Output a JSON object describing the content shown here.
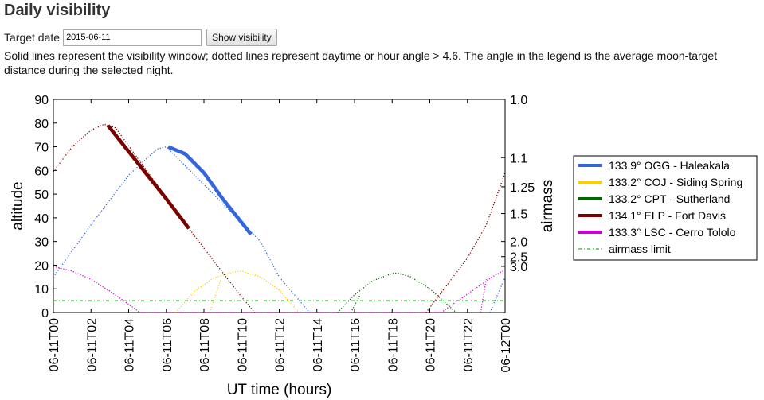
{
  "page": {
    "title": "Daily visibility",
    "date_label": "Target date",
    "date_value": "2015-06-11",
    "button_label": "Show visibility",
    "description": "Solid lines represent the visibility window; dotted lines represent daytime or hour angle > 4.6. The angle in the legend is the average moon-target distance during the selected night."
  },
  "chart_data": {
    "type": "line",
    "xlabel": "UT time (hours)",
    "ylabel": "altitude",
    "y2label": "airmass",
    "xlim": [
      0,
      24
    ],
    "ylim": [
      0,
      90
    ],
    "x_ticks": [
      0,
      2,
      4,
      6,
      8,
      10,
      12,
      14,
      16,
      18,
      20,
      22,
      24
    ],
    "x_tick_labels": [
      "06-11T00",
      "06-11T02",
      "06-11T04",
      "06-11T06",
      "06-11T08",
      "06-11T10",
      "06-11T12",
      "06-11T14",
      "06-11T16",
      "06-11T18",
      "06-11T20",
      "06-11T22",
      "06-12T00"
    ],
    "y_ticks": [
      0,
      10,
      20,
      30,
      40,
      50,
      60,
      70,
      80,
      90
    ],
    "airmass_ticks": [
      {
        "label": "1.0",
        "altitude": 90
      },
      {
        "label": "1.1",
        "altitude": 65.4
      },
      {
        "label": "1.25",
        "altitude": 53.1
      },
      {
        "label": "1.5",
        "altitude": 41.8
      },
      {
        "label": "2.0",
        "altitude": 30
      },
      {
        "label": "2.5",
        "altitude": 23.6
      },
      {
        "label": "3.0",
        "altitude": 19.5
      }
    ],
    "airmass_limit": {
      "label": "airmass limit",
      "altitude": 5,
      "color": "#009900"
    },
    "legend_position": "outside-right",
    "series": [
      {
        "name": "133.9° OGG - Haleakala",
        "color": "#3366dd",
        "dotted": [
          [
            0,
            15
          ],
          [
            2,
            37
          ],
          [
            4,
            58
          ],
          [
            5.5,
            69
          ],
          [
            6,
            70
          ],
          [
            11,
            30
          ],
          [
            12,
            15
          ],
          [
            13.5,
            1
          ],
          [
            13.65,
            0
          ]
        ],
        "solid": [
          [
            6.1,
            70
          ],
          [
            7.0,
            67
          ],
          [
            8.0,
            59
          ],
          [
            9.0,
            48
          ],
          [
            10.0,
            38
          ],
          [
            10.5,
            33
          ]
        ]
      },
      {
        "name": "133.2° COJ - Siding Spring",
        "color": "#ffcc00",
        "dotted": [
          [
            6.5,
            0
          ],
          [
            7.5,
            9
          ],
          [
            8.5,
            14.5
          ],
          [
            9.5,
            17
          ],
          [
            10.0,
            17.5
          ],
          [
            11,
            15
          ],
          [
            12,
            9.5
          ],
          [
            13.05,
            0
          ]
        ],
        "solid": []
      },
      {
        "name": "133.2° CPT - Sutherland",
        "color": "#006600",
        "dotted": [
          [
            15.1,
            0
          ],
          [
            16,
            7.5
          ],
          [
            17,
            13.5
          ],
          [
            18,
            16.5
          ],
          [
            18.3,
            16.7
          ],
          [
            19,
            15
          ],
          [
            20,
            10
          ],
          [
            21.4,
            0
          ]
        ],
        "solid": []
      },
      {
        "name": "134.1° ELP - Fort Davis",
        "color": "#7a0000",
        "dotted": [
          [
            0,
            59.5
          ],
          [
            1,
            70
          ],
          [
            2,
            77
          ],
          [
            2.7,
            79.5
          ],
          [
            3.3,
            78
          ],
          [
            7.2,
            35.5
          ],
          [
            8.5,
            22
          ],
          [
            10,
            6.5
          ],
          [
            10.7,
            0
          ]
        ],
        "solid": [
          [
            2.9,
            79
          ],
          [
            4,
            68
          ],
          [
            5,
            58
          ],
          [
            6,
            48
          ],
          [
            7.2,
            35.5
          ]
        ]
      },
      {
        "name": "133.3° LSC - Cerro Tololo",
        "color": "#cc00cc",
        "dotted": [
          [
            0,
            19.5
          ],
          [
            1,
            17.5
          ],
          [
            2,
            14
          ],
          [
            3,
            9
          ],
          [
            4,
            3.5
          ],
          [
            4.6,
            0
          ],
          [
            20.6,
            0
          ],
          [
            21.5,
            5
          ],
          [
            22.5,
            10.5
          ],
          [
            23.3,
            15
          ],
          [
            24,
            18
          ]
        ],
        "solid": []
      }
    ],
    "extra_dotted": [
      {
        "color": "#7a0000",
        "points": [
          [
            19.8,
            0
          ],
          [
            21,
            12.5
          ],
          [
            22,
            23
          ],
          [
            23,
            37
          ],
          [
            24,
            59
          ]
        ]
      },
      {
        "color": "#3366dd",
        "points": [
          [
            23.2,
            0
          ],
          [
            24,
            15
          ]
        ]
      },
      {
        "color": "#ffcc00",
        "points": [
          [
            8.3,
            0
          ],
          [
            8.9,
            14
          ]
        ]
      },
      {
        "color": "#006600",
        "points": [
          [
            15.8,
            0
          ],
          [
            16.3,
            7.5
          ]
        ]
      },
      {
        "color": "#cc00cc",
        "points": [
          [
            22.7,
            0
          ],
          [
            23.0,
            14
          ]
        ]
      }
    ]
  }
}
